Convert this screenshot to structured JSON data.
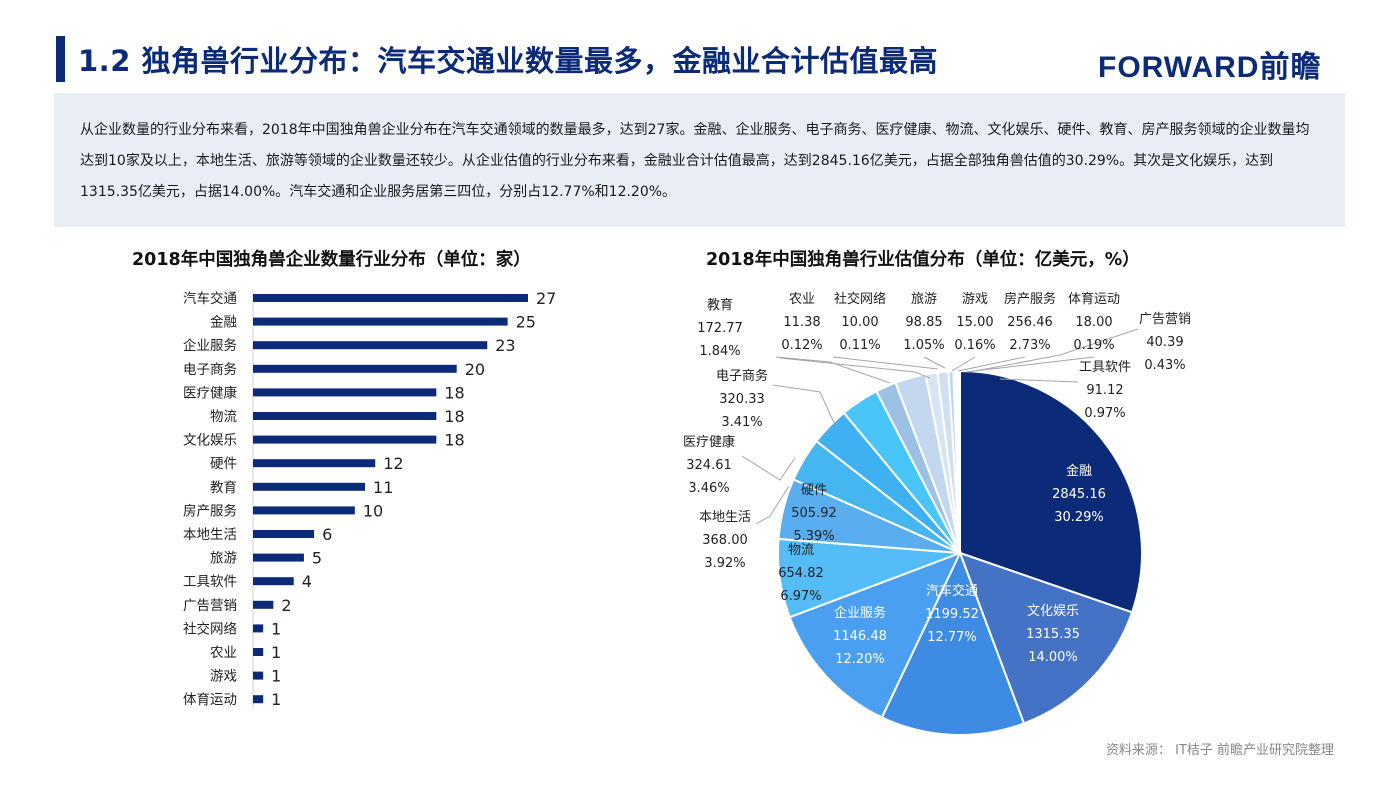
{
  "header": {
    "title": "1.2 独角兽行业分布：汽车交通业数量最多，金融业合计估值最高",
    "logo": "FORWARD前瞻"
  },
  "summary": {
    "text": "从企业数量的行业分布来看，2018年中国独角兽企业分布在汽车交通领域的数量最多，达到27家。金融、企业服务、电子商务、医疗健康、物流、文化娱乐、硬件、教育、房产服务领域的企业数量均达到10家及以上，本地生活、旅游等领域的企业数量还较少。从企业估值的行业分布来看，金融业合计估值最高，达到2845.16亿美元，占据全部独角兽估值的30.29%。其次是文化娱乐，达到1315.35亿美元，占据14.00%。汽车交通和企业服务居第三四位，分别占12.77%和12.20%。"
  },
  "footer": {
    "source": "资料来源： IT桔子 前瞻产业研究院整理"
  },
  "chart_data": [
    {
      "type": "bar",
      "orientation": "horizontal",
      "title": "2018年中国独角兽企业数量行业分布（单位：家）",
      "categories": [
        "汽车交通",
        "金融",
        "企业服务",
        "电子商务",
        "医疗健康",
        "物流",
        "文化娱乐",
        "硬件",
        "教育",
        "房产服务",
        "本地生活",
        "旅游",
        "工具软件",
        "广告营销",
        "社交网络",
        "农业",
        "游戏",
        "体育运动"
      ],
      "values": [
        27,
        25,
        23,
        20,
        18,
        18,
        18,
        12,
        11,
        10,
        6,
        5,
        4,
        2,
        1,
        1,
        1,
        1
      ],
      "color": "#0b2a78",
      "xlim": [
        0,
        27
      ]
    },
    {
      "type": "pie",
      "title": "2018年中国独角兽行业估值分布（单位：亿美元，%）",
      "slices": [
        {
          "name": "金融",
          "value": 2845.16,
          "value_label": "2845.16",
          "percent": "30.29%",
          "color": "#0b2a78"
        },
        {
          "name": "文化娱乐",
          "value": 1315.35,
          "value_label": "1315.35",
          "percent": "14.00%",
          "color": "#4472c4"
        },
        {
          "name": "汽车交通",
          "value": 1199.52,
          "value_label": "1199.52",
          "percent": "12.77%",
          "color": "#3d8be2"
        },
        {
          "name": "企业服务",
          "value": 1146.48,
          "value_label": "1146.48",
          "percent": "12.20%",
          "color": "#4a9ff0"
        },
        {
          "name": "物流",
          "value": 654.82,
          "value_label": "654.82",
          "percent": "6.97%",
          "color": "#54bdf7"
        },
        {
          "name": "硬件",
          "value": 505.92,
          "value_label": "505.92",
          "percent": "5.39%",
          "color": "#5aaef0"
        },
        {
          "name": "本地生活",
          "value": 368.0,
          "value_label": "368.00",
          "percent": "3.92%",
          "color": "#46b6f0"
        },
        {
          "name": "医疗健康",
          "value": 324.61,
          "value_label": "324.61",
          "percent": "3.46%",
          "color": "#3fb0f2"
        },
        {
          "name": "电子商务",
          "value": 320.33,
          "value_label": "320.33",
          "percent": "3.41%",
          "color": "#49c6f7"
        },
        {
          "name": "教育",
          "value": 172.77,
          "value_label": "172.77",
          "percent": "1.84%",
          "color": "#9cc1e4"
        },
        {
          "name": "房产服务",
          "value": 256.46,
          "value_label": "256.46",
          "percent": "2.73%",
          "color": "#c3d8ee"
        },
        {
          "name": "旅游",
          "value": 98.85,
          "value_label": "98.85",
          "percent": "1.05%",
          "color": "#d7e4f3"
        },
        {
          "name": "工具软件",
          "value": 91.12,
          "value_label": "91.12",
          "percent": "0.97%",
          "color": "#cfe0f2"
        },
        {
          "name": "广告营销",
          "value": 40.39,
          "value_label": "40.39",
          "percent": "0.43%",
          "color": "#bcd5ee"
        },
        {
          "name": "体育运动",
          "value": 18.0,
          "value_label": "18.00",
          "percent": "0.19%",
          "color": "#e3ecf7"
        },
        {
          "name": "游戏",
          "value": 15.0,
          "value_label": "15.00",
          "percent": "0.16%",
          "color": "#d5e3f3"
        },
        {
          "name": "农业",
          "value": 11.38,
          "value_label": "11.38",
          "percent": "0.12%",
          "color": "#e9f0f8"
        },
        {
          "name": "社交网络",
          "value": 10.0,
          "value_label": "10.00",
          "percent": "0.11%",
          "color": "#dbe7f5"
        }
      ]
    }
  ]
}
